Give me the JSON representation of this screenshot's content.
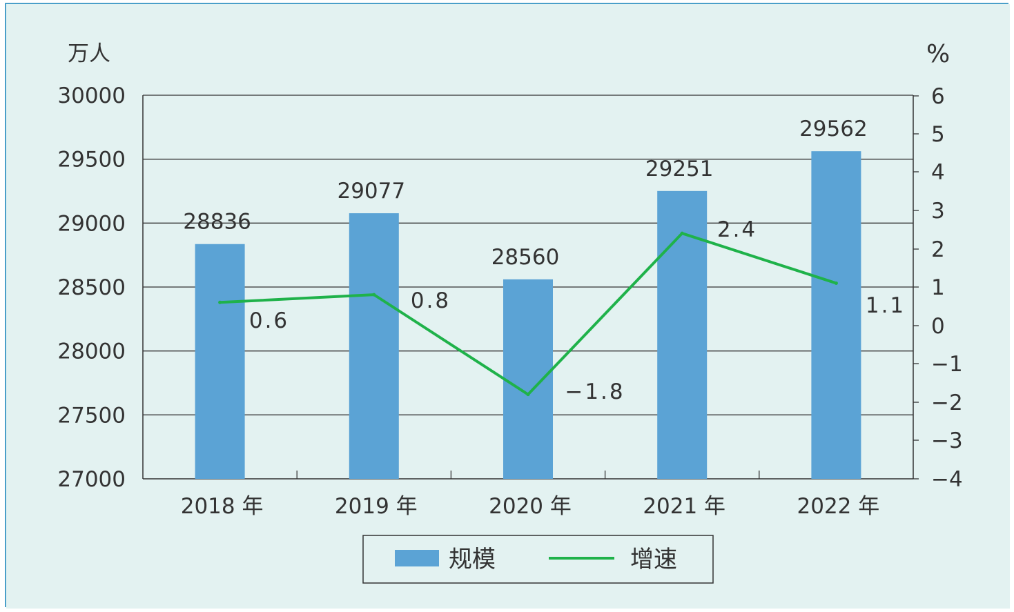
{
  "chart_data": {
    "type": "bar+line",
    "categories": [
      "2018 年",
      "2019 年",
      "2020 年",
      "2021 年",
      "2022 年"
    ],
    "left_axis": {
      "unit": "万人",
      "range": [
        27000,
        30000
      ],
      "ticks": [
        "30000",
        "29500",
        "29000",
        "28500",
        "28000",
        "27500",
        "27000"
      ]
    },
    "right_axis": {
      "unit": "%",
      "range": [
        -4,
        6
      ],
      "ticks": [
        "6",
        "5",
        "4",
        "3",
        "2",
        "1",
        "0",
        "−1",
        "−2",
        "−3",
        "−4"
      ]
    },
    "series": [
      {
        "name": "规模",
        "kind": "bar",
        "axis": "left",
        "color": "#5ba3d5",
        "values": [
          28836,
          29077,
          28560,
          29251,
          29562
        ],
        "labels": [
          "28836",
          "29077",
          "28560",
          "29251",
          "29562"
        ]
      },
      {
        "name": "增速",
        "kind": "line",
        "axis": "right",
        "color": "#1fb24a",
        "values": [
          0.6,
          0.8,
          -1.8,
          2.4,
          1.1
        ],
        "labels": [
          "0.6",
          "0.8",
          "−1.8",
          "2.4",
          "1.1"
        ]
      }
    ],
    "grid": true,
    "legend_placement": "bottom-center",
    "background": "#e3f2f1"
  }
}
